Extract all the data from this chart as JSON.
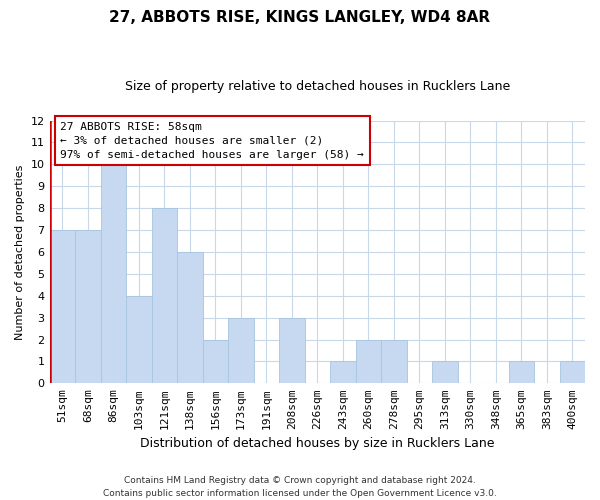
{
  "title": "27, ABBOTS RISE, KINGS LANGLEY, WD4 8AR",
  "subtitle": "Size of property relative to detached houses in Rucklers Lane",
  "xlabel": "Distribution of detached houses by size in Rucklers Lane",
  "ylabel": "Number of detached properties",
  "bar_labels": [
    "51sqm",
    "68sqm",
    "86sqm",
    "103sqm",
    "121sqm",
    "138sqm",
    "156sqm",
    "173sqm",
    "191sqm",
    "208sqm",
    "226sqm",
    "243sqm",
    "260sqm",
    "278sqm",
    "295sqm",
    "313sqm",
    "330sqm",
    "348sqm",
    "365sqm",
    "383sqm",
    "400sqm"
  ],
  "bar_values": [
    7,
    7,
    10,
    4,
    8,
    6,
    2,
    3,
    0,
    3,
    0,
    1,
    2,
    2,
    0,
    1,
    0,
    0,
    1,
    0,
    1
  ],
  "bar_color": "#c6d9f1",
  "bar_edge_color": "#a8c4e0",
  "highlight_color": "#cc0000",
  "ylim": [
    0,
    12
  ],
  "yticks": [
    0,
    1,
    2,
    3,
    4,
    5,
    6,
    7,
    8,
    9,
    10,
    11,
    12
  ],
  "annotation_title": "27 ABBOTS RISE: 58sqm",
  "annotation_line1": "← 3% of detached houses are smaller (2)",
  "annotation_line2": "97% of semi-detached houses are larger (58) →",
  "footnote1": "Contains HM Land Registry data © Crown copyright and database right 2024.",
  "footnote2": "Contains public sector information licensed under the Open Government Licence v3.0.",
  "bg_color": "#ffffff",
  "grid_color": "#c8d8e8",
  "title_fontsize": 11,
  "subtitle_fontsize": 9,
  "xlabel_fontsize": 9,
  "ylabel_fontsize": 8,
  "tick_fontsize": 8,
  "annot_fontsize": 8,
  "footnote_fontsize": 6.5
}
